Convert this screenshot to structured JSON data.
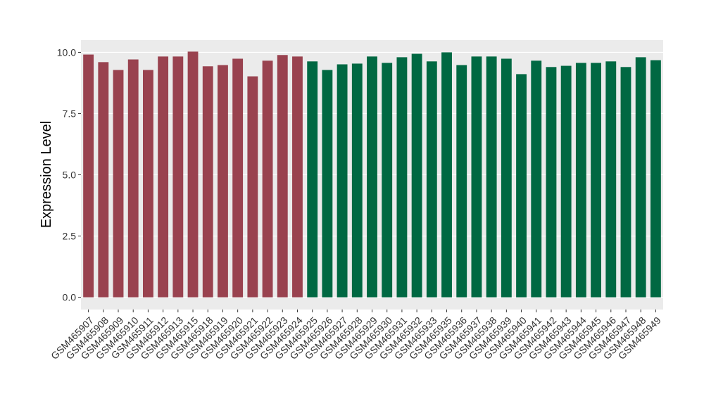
{
  "chart_data": {
    "type": "bar",
    "y_label": "Expression Level",
    "categories": [
      "GSM465907",
      "GSM465908",
      "GSM465909",
      "GSM465910",
      "GSM465911",
      "GSM465912",
      "GSM465913",
      "GSM465915",
      "GSM465918",
      "GSM465919",
      "GSM465920",
      "GSM465921",
      "GSM465922",
      "GSM465923",
      "GSM465924",
      "GSM465925",
      "GSM465926",
      "GSM465927",
      "GSM465928",
      "GSM465929",
      "GSM465930",
      "GSM465931",
      "GSM465932",
      "GSM465933",
      "GSM465935",
      "GSM465936",
      "GSM465937",
      "GSM465938",
      "GSM465939",
      "GSM465940",
      "GSM465941",
      "GSM465942",
      "GSM465943",
      "GSM465944",
      "GSM465945",
      "GSM465946",
      "GSM465947",
      "GSM465948",
      "GSM465949"
    ],
    "values": [
      9.91,
      9.6,
      9.28,
      9.71,
      9.28,
      9.83,
      9.83,
      10.03,
      9.43,
      9.48,
      9.74,
      9.02,
      9.66,
      9.89,
      9.83,
      9.63,
      9.28,
      9.51,
      9.54,
      9.83,
      9.57,
      9.8,
      9.94,
      9.63,
      10.0,
      9.48,
      9.83,
      9.83,
      9.74,
      9.11,
      9.66,
      9.4,
      9.45,
      9.57,
      9.57,
      9.63,
      9.4,
      9.8,
      9.68
    ],
    "colors": [
      "#99424f",
      "#99424f",
      "#99424f",
      "#99424f",
      "#99424f",
      "#99424f",
      "#99424f",
      "#99424f",
      "#99424f",
      "#99424f",
      "#99424f",
      "#99424f",
      "#99424f",
      "#99424f",
      "#99424f",
      "#006842",
      "#006842",
      "#006842",
      "#006842",
      "#006842",
      "#006842",
      "#006842",
      "#006842",
      "#006842",
      "#006842",
      "#006842",
      "#006842",
      "#006842",
      "#006842",
      "#006842",
      "#006842",
      "#006842",
      "#006842",
      "#006842",
      "#006842",
      "#006842",
      "#006842",
      "#006842",
      "#006842"
    ],
    "ylim": [
      -0.5,
      10.5
    ],
    "yticks": [
      {
        "value": 0,
        "label": "0.0"
      },
      {
        "value": 2.5,
        "label": "2.5"
      },
      {
        "value": 5,
        "label": "5.0"
      },
      {
        "value": 7.5,
        "label": "7.5"
      },
      {
        "value": 10,
        "label": "10.0"
      }
    ],
    "grid": true
  }
}
